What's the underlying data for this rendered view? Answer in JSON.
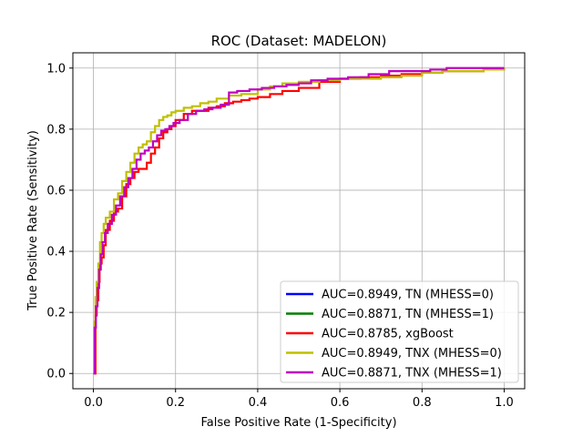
{
  "chart_data": {
    "type": "line",
    "title": "ROC (Dataset: MADELON)",
    "xlabel": "False Positive Rate (1-Specificity)",
    "ylabel": "True Positive Rate (Sensitivity)",
    "xlim": [
      -0.05,
      1.05
    ],
    "ylim": [
      -0.05,
      1.05
    ],
    "xticks": [
      0.0,
      0.2,
      0.4,
      0.6,
      0.8,
      1.0
    ],
    "yticks": [
      0.0,
      0.2,
      0.4,
      0.6,
      0.8,
      1.0
    ],
    "xtick_labels": [
      "0.0",
      "0.2",
      "0.4",
      "0.6",
      "0.8",
      "1.0"
    ],
    "ytick_labels": [
      "0.0",
      "0.2",
      "0.4",
      "0.6",
      "0.8",
      "1.0"
    ],
    "grid": true,
    "legend_position": "lower-right",
    "series": [
      {
        "name": "AUC=0.8949, TN (MHESS=0)",
        "color": "#0000ff",
        "visible": false,
        "x": [
          0.0,
          0.004,
          0.01,
          0.015,
          0.02,
          0.03,
          0.05,
          0.07,
          0.09,
          0.11,
          0.13,
          0.15,
          0.17,
          0.19,
          0.22,
          0.25,
          0.28,
          0.32,
          0.36,
          0.4,
          0.45,
          0.5,
          0.55,
          0.6,
          0.7,
          0.8,
          0.9,
          1.0
        ],
        "y": [
          0.0,
          0.18,
          0.3,
          0.42,
          0.47,
          0.5,
          0.56,
          0.64,
          0.7,
          0.74,
          0.76,
          0.8,
          0.84,
          0.85,
          0.87,
          0.88,
          0.89,
          0.91,
          0.92,
          0.94,
          0.95,
          0.955,
          0.96,
          0.97,
          0.975,
          0.98,
          0.99,
          1.0
        ]
      },
      {
        "name": "AUC=0.8871, TN (MHESS=1)",
        "color": "#008000",
        "visible": false,
        "x": [
          0.0,
          0.005,
          0.01,
          0.02,
          0.03,
          0.05,
          0.07,
          0.09,
          0.11,
          0.14,
          0.17,
          0.2,
          0.25,
          0.3,
          0.35,
          0.4,
          0.45,
          0.5,
          0.55,
          0.6,
          0.7,
          0.8,
          0.9,
          1.0
        ],
        "y": [
          0.0,
          0.2,
          0.3,
          0.38,
          0.45,
          0.53,
          0.59,
          0.66,
          0.71,
          0.74,
          0.78,
          0.81,
          0.86,
          0.88,
          0.915,
          0.925,
          0.935,
          0.945,
          0.955,
          0.965,
          0.975,
          0.985,
          1.0,
          1.0
        ]
      },
      {
        "name": "AUC=0.8785, xgBoost",
        "color": "#ff0000",
        "visible": true,
        "x": [
          0.0,
          0.005,
          0.008,
          0.012,
          0.015,
          0.02,
          0.025,
          0.03,
          0.04,
          0.05,
          0.06,
          0.07,
          0.08,
          0.09,
          0.1,
          0.11,
          0.12,
          0.13,
          0.14,
          0.15,
          0.16,
          0.17,
          0.18,
          0.19,
          0.2,
          0.22,
          0.24,
          0.26,
          0.28,
          0.3,
          0.32,
          0.34,
          0.36,
          0.38,
          0.4,
          0.43,
          0.46,
          0.5,
          0.55,
          0.6,
          0.65,
          0.7,
          0.75,
          0.8,
          0.85,
          0.9,
          0.95,
          1.0
        ],
        "y": [
          0.0,
          0.19,
          0.24,
          0.3,
          0.36,
          0.38,
          0.42,
          0.47,
          0.5,
          0.53,
          0.54,
          0.58,
          0.62,
          0.64,
          0.66,
          0.67,
          0.67,
          0.69,
          0.72,
          0.74,
          0.77,
          0.79,
          0.8,
          0.81,
          0.83,
          0.85,
          0.86,
          0.86,
          0.87,
          0.875,
          0.885,
          0.89,
          0.895,
          0.9,
          0.905,
          0.915,
          0.925,
          0.935,
          0.955,
          0.965,
          0.97,
          0.975,
          0.98,
          0.985,
          0.99,
          0.99,
          0.995,
          1.0
        ]
      },
      {
        "name": "AUC=0.8949, TNX (MHESS=0)",
        "color": "#bfbf00",
        "visible": true,
        "x": [
          0.0,
          0.003,
          0.005,
          0.008,
          0.012,
          0.016,
          0.02,
          0.025,
          0.03,
          0.04,
          0.05,
          0.06,
          0.07,
          0.08,
          0.09,
          0.1,
          0.11,
          0.12,
          0.13,
          0.14,
          0.15,
          0.16,
          0.17,
          0.18,
          0.19,
          0.2,
          0.22,
          0.24,
          0.26,
          0.28,
          0.3,
          0.33,
          0.36,
          0.4,
          0.43,
          0.46,
          0.5,
          0.55,
          0.6,
          0.65,
          0.7,
          0.75,
          0.8,
          0.85,
          0.9,
          0.95,
          1.0
        ],
        "y": [
          0.0,
          0.17,
          0.25,
          0.3,
          0.36,
          0.43,
          0.46,
          0.49,
          0.51,
          0.53,
          0.57,
          0.59,
          0.63,
          0.66,
          0.69,
          0.72,
          0.74,
          0.75,
          0.76,
          0.79,
          0.81,
          0.83,
          0.84,
          0.845,
          0.855,
          0.86,
          0.87,
          0.875,
          0.885,
          0.89,
          0.9,
          0.91,
          0.915,
          0.93,
          0.94,
          0.95,
          0.955,
          0.96,
          0.965,
          0.965,
          0.97,
          0.975,
          0.985,
          0.99,
          0.99,
          0.995,
          1.0
        ]
      },
      {
        "name": "AUC=0.8871, TNX (MHESS=1)",
        "color": "#bf00bf",
        "visible": true,
        "x": [
          0.0,
          0.003,
          0.006,
          0.01,
          0.014,
          0.018,
          0.022,
          0.028,
          0.035,
          0.045,
          0.055,
          0.065,
          0.075,
          0.085,
          0.095,
          0.105,
          0.115,
          0.125,
          0.135,
          0.145,
          0.155,
          0.165,
          0.175,
          0.185,
          0.195,
          0.21,
          0.23,
          0.25,
          0.27,
          0.29,
          0.31,
          0.33,
          0.35,
          0.38,
          0.41,
          0.44,
          0.47,
          0.5,
          0.53,
          0.57,
          0.62,
          0.67,
          0.72,
          0.77,
          0.82,
          0.86,
          0.9,
          0.95,
          1.0
        ],
        "y": [
          0.0,
          0.15,
          0.22,
          0.28,
          0.34,
          0.39,
          0.43,
          0.46,
          0.49,
          0.52,
          0.55,
          0.58,
          0.61,
          0.64,
          0.67,
          0.7,
          0.72,
          0.73,
          0.74,
          0.76,
          0.78,
          0.795,
          0.8,
          0.81,
          0.82,
          0.83,
          0.85,
          0.86,
          0.865,
          0.87,
          0.88,
          0.92,
          0.925,
          0.93,
          0.935,
          0.94,
          0.945,
          0.95,
          0.96,
          0.965,
          0.97,
          0.98,
          0.99,
          0.99,
          0.995,
          1.0,
          1.0,
          1.0,
          1.0
        ]
      }
    ]
  }
}
